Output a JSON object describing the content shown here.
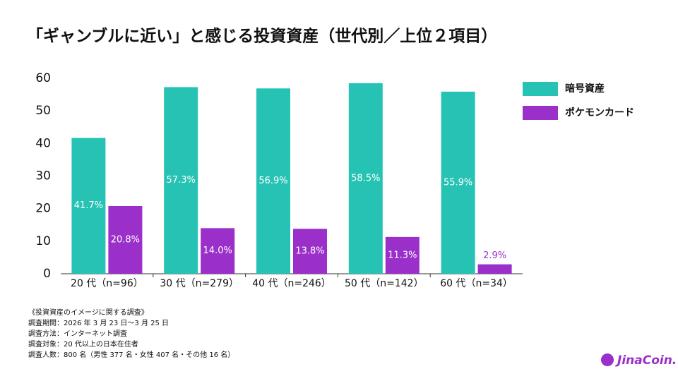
{
  "chart_data": {
    "type": "bar",
    "title": "「ギャンブルに近い」と感じる投資資産（世代別／上位２項目）",
    "categories": [
      "20 代（n=96）",
      "30 代（n=279）",
      "40 代（n=246）",
      "50 代（n=142）",
      "60 代（n=34）"
    ],
    "series": [
      {
        "name": "暗号資産",
        "color": "#26c3b4",
        "values": [
          41.7,
          57.3,
          56.9,
          58.5,
          55.9
        ],
        "value_labels": [
          "41.7%",
          "57.3%",
          "56.9%",
          "58.5%",
          "55.9%"
        ]
      },
      {
        "name": "ポケモンカード",
        "color": "#9a2fc9",
        "values": [
          20.8,
          14.0,
          13.8,
          11.3,
          2.9
        ],
        "value_labels": [
          "20.8%",
          "14.0%",
          "13.8%",
          "11.3%",
          "2.9%"
        ]
      }
    ],
    "ylim": [
      0,
      60
    ],
    "yticks": [
      0,
      10,
      20,
      30,
      40,
      50,
      60
    ],
    "grid": false,
    "legend": "right"
  },
  "notes": [
    "《投資資産のイメージに関する調査》",
    "調査期間：2026 年 3 月 23 日〜3 月 25 日",
    "調査方法：インターネット調査",
    "調査対象：20 代以上の日本在住者",
    "調査人数：800 名（男性 377 名・女性 407 名・その他 16 名）"
  ],
  "logo": "JinaCoin."
}
